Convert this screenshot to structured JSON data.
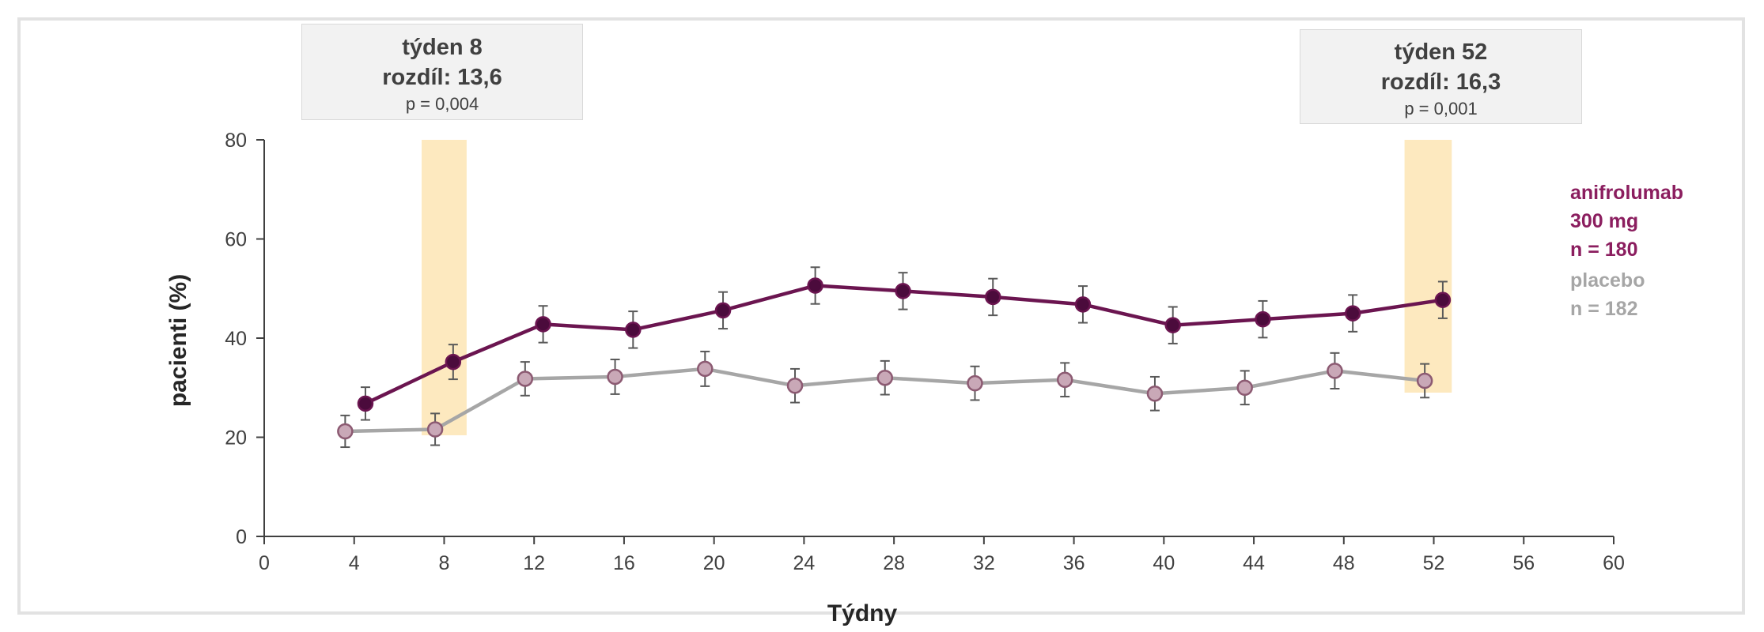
{
  "chart_data": {
    "type": "line",
    "xlabel": "Týdny",
    "ylabel": "pacienti (%)",
    "xlim": [
      0,
      60
    ],
    "ylim": [
      0,
      80
    ],
    "xticks": [
      "0",
      "4",
      "8",
      "12",
      "16",
      "20",
      "24",
      "28",
      "32",
      "36",
      "40",
      "44",
      "48",
      "52",
      "56",
      "60"
    ],
    "yticks": [
      "0",
      "20",
      "40",
      "60",
      "80"
    ],
    "grid": false,
    "series": [
      {
        "name": "anifrolumab 300 mg",
        "color": "#6b1550",
        "marker_fill": "#4b0b3c",
        "x": [
          4.5,
          8.4,
          12.4,
          16.4,
          20.4,
          24.5,
          28.4,
          32.4,
          36.4,
          40.4,
          44.4,
          48.4,
          52.4
        ],
        "y": [
          26.8,
          35.2,
          42.8,
          41.7,
          45.6,
          50.6,
          49.5,
          48.3,
          46.8,
          42.6,
          43.8,
          45.0,
          47.7
        ],
        "err": [
          3.3,
          3.5,
          3.7,
          3.7,
          3.7,
          3.7,
          3.7,
          3.7,
          3.7,
          3.7,
          3.7,
          3.7,
          3.7
        ]
      },
      {
        "name": "placebo",
        "color": "#a6a6a6",
        "marker_fill": "#c9a8b7",
        "x": [
          3.6,
          7.6,
          11.6,
          15.6,
          19.6,
          23.6,
          27.6,
          31.6,
          35.6,
          39.6,
          43.6,
          47.6,
          51.6
        ],
        "y": [
          21.2,
          21.6,
          31.8,
          32.2,
          33.8,
          30.4,
          32.0,
          30.9,
          31.6,
          28.8,
          30.0,
          33.4,
          31.4
        ],
        "err": [
          3.2,
          3.2,
          3.4,
          3.5,
          3.5,
          3.4,
          3.4,
          3.4,
          3.4,
          3.4,
          3.4,
          3.6,
          3.4
        ]
      }
    ],
    "highlight_bands": [
      {
        "x_from": 7.0,
        "x_to": 9.0,
        "y_from": 20.4,
        "y_to": 80,
        "color": "#fde9bf"
      },
      {
        "x_from": 50.7,
        "x_to": 52.8,
        "y_from": 29.0,
        "y_to": 80,
        "color": "#fde9bf"
      }
    ],
    "annotations": [
      {
        "line1": "týden 8",
        "line2": "rozdíl: 13,6",
        "line3": "p = 0,004"
      },
      {
        "line1": "týden 52",
        "line2": "rozdíl: 16,3",
        "line3": "p = 0,001"
      }
    ],
    "legend": {
      "position": "right",
      "drug_line1": "anifrolumab",
      "drug_line2": "300 mg",
      "drug_n": "n = 180",
      "placebo_line1": "placebo",
      "placebo_n": "n = 182"
    }
  }
}
